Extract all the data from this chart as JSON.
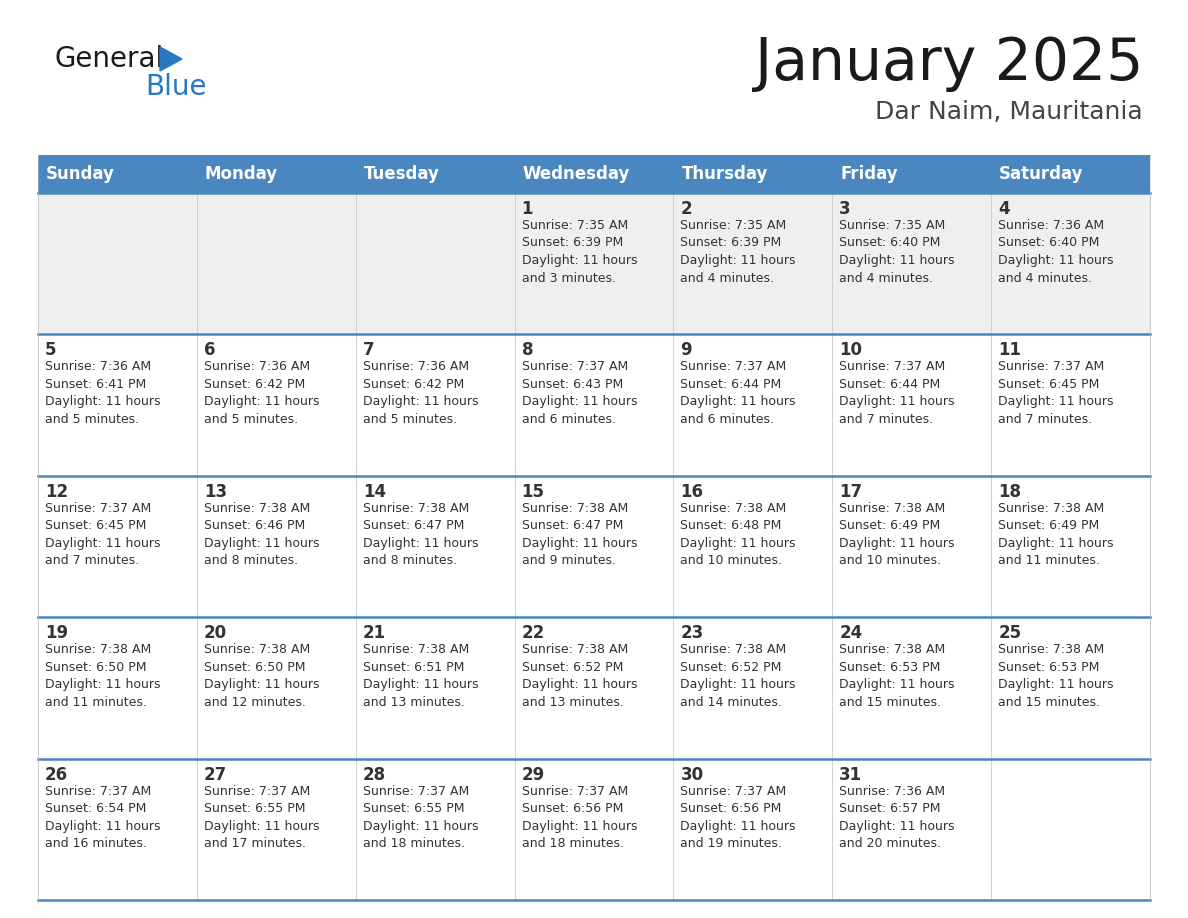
{
  "title": "January 2025",
  "subtitle": "Dar Naim, Mauritania",
  "days_of_week": [
    "Sunday",
    "Monday",
    "Tuesday",
    "Wednesday",
    "Thursday",
    "Friday",
    "Saturday"
  ],
  "header_bg": "#4a86c0",
  "header_text_color": "#ffffff",
  "cell_bg_light": "#efefef",
  "cell_bg_white": "#ffffff",
  "border_color": "#4a86c0",
  "grid_color": "#c0c0c0",
  "text_color": "#333333",
  "title_color": "#1a1a1a",
  "subtitle_color": "#444444",
  "logo_general_color": "#1a1a1a",
  "logo_blue_color": "#2878be",
  "calendar_data": [
    [
      {
        "day": null,
        "sunrise": null,
        "sunset": null,
        "daylight": null
      },
      {
        "day": null,
        "sunrise": null,
        "sunset": null,
        "daylight": null
      },
      {
        "day": null,
        "sunrise": null,
        "sunset": null,
        "daylight": null
      },
      {
        "day": 1,
        "sunrise": "7:35 AM",
        "sunset": "6:39 PM",
        "daylight": "11 hours and 3 minutes."
      },
      {
        "day": 2,
        "sunrise": "7:35 AM",
        "sunset": "6:39 PM",
        "daylight": "11 hours and 4 minutes."
      },
      {
        "day": 3,
        "sunrise": "7:35 AM",
        "sunset": "6:40 PM",
        "daylight": "11 hours and 4 minutes."
      },
      {
        "day": 4,
        "sunrise": "7:36 AM",
        "sunset": "6:40 PM",
        "daylight": "11 hours and 4 minutes."
      }
    ],
    [
      {
        "day": 5,
        "sunrise": "7:36 AM",
        "sunset": "6:41 PM",
        "daylight": "11 hours and 5 minutes."
      },
      {
        "day": 6,
        "sunrise": "7:36 AM",
        "sunset": "6:42 PM",
        "daylight": "11 hours and 5 minutes."
      },
      {
        "day": 7,
        "sunrise": "7:36 AM",
        "sunset": "6:42 PM",
        "daylight": "11 hours and 5 minutes."
      },
      {
        "day": 8,
        "sunrise": "7:37 AM",
        "sunset": "6:43 PM",
        "daylight": "11 hours and 6 minutes."
      },
      {
        "day": 9,
        "sunrise": "7:37 AM",
        "sunset": "6:44 PM",
        "daylight": "11 hours and 6 minutes."
      },
      {
        "day": 10,
        "sunrise": "7:37 AM",
        "sunset": "6:44 PM",
        "daylight": "11 hours and 7 minutes."
      },
      {
        "day": 11,
        "sunrise": "7:37 AM",
        "sunset": "6:45 PM",
        "daylight": "11 hours and 7 minutes."
      }
    ],
    [
      {
        "day": 12,
        "sunrise": "7:37 AM",
        "sunset": "6:45 PM",
        "daylight": "11 hours and 7 minutes."
      },
      {
        "day": 13,
        "sunrise": "7:38 AM",
        "sunset": "6:46 PM",
        "daylight": "11 hours and 8 minutes."
      },
      {
        "day": 14,
        "sunrise": "7:38 AM",
        "sunset": "6:47 PM",
        "daylight": "11 hours and 8 minutes."
      },
      {
        "day": 15,
        "sunrise": "7:38 AM",
        "sunset": "6:47 PM",
        "daylight": "11 hours and 9 minutes."
      },
      {
        "day": 16,
        "sunrise": "7:38 AM",
        "sunset": "6:48 PM",
        "daylight": "11 hours and 10 minutes."
      },
      {
        "day": 17,
        "sunrise": "7:38 AM",
        "sunset": "6:49 PM",
        "daylight": "11 hours and 10 minutes."
      },
      {
        "day": 18,
        "sunrise": "7:38 AM",
        "sunset": "6:49 PM",
        "daylight": "11 hours and 11 minutes."
      }
    ],
    [
      {
        "day": 19,
        "sunrise": "7:38 AM",
        "sunset": "6:50 PM",
        "daylight": "11 hours and 11 minutes."
      },
      {
        "day": 20,
        "sunrise": "7:38 AM",
        "sunset": "6:50 PM",
        "daylight": "11 hours and 12 minutes."
      },
      {
        "day": 21,
        "sunrise": "7:38 AM",
        "sunset": "6:51 PM",
        "daylight": "11 hours and 13 minutes."
      },
      {
        "day": 22,
        "sunrise": "7:38 AM",
        "sunset": "6:52 PM",
        "daylight": "11 hours and 13 minutes."
      },
      {
        "day": 23,
        "sunrise": "7:38 AM",
        "sunset": "6:52 PM",
        "daylight": "11 hours and 14 minutes."
      },
      {
        "day": 24,
        "sunrise": "7:38 AM",
        "sunset": "6:53 PM",
        "daylight": "11 hours and 15 minutes."
      },
      {
        "day": 25,
        "sunrise": "7:38 AM",
        "sunset": "6:53 PM",
        "daylight": "11 hours and 15 minutes."
      }
    ],
    [
      {
        "day": 26,
        "sunrise": "7:37 AM",
        "sunset": "6:54 PM",
        "daylight": "11 hours and 16 minutes."
      },
      {
        "day": 27,
        "sunrise": "7:37 AM",
        "sunset": "6:55 PM",
        "daylight": "11 hours and 17 minutes."
      },
      {
        "day": 28,
        "sunrise": "7:37 AM",
        "sunset": "6:55 PM",
        "daylight": "11 hours and 18 minutes."
      },
      {
        "day": 29,
        "sunrise": "7:37 AM",
        "sunset": "6:56 PM",
        "daylight": "11 hours and 18 minutes."
      },
      {
        "day": 30,
        "sunrise": "7:37 AM",
        "sunset": "6:56 PM",
        "daylight": "11 hours and 19 minutes."
      },
      {
        "day": 31,
        "sunrise": "7:36 AM",
        "sunset": "6:57 PM",
        "daylight": "11 hours and 20 minutes."
      },
      {
        "day": null,
        "sunrise": null,
        "sunset": null,
        "daylight": null
      }
    ]
  ]
}
